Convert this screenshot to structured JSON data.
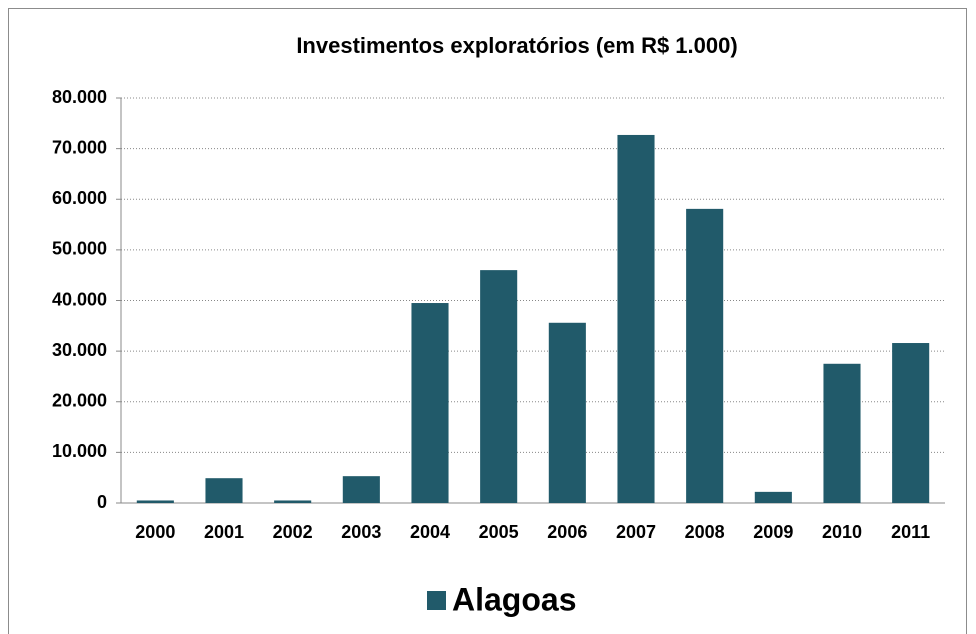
{
  "chart_data": {
    "type": "bar",
    "title": "Investimentos exploratórios (em R$ 1.000)",
    "categories": [
      "2000",
      "2001",
      "2002",
      "2003",
      "2004",
      "2005",
      "2006",
      "2007",
      "2008",
      "2009",
      "2010",
      "2011"
    ],
    "series": [
      {
        "name": "Alagoas",
        "color": "#215a6a",
        "values": [
          500,
          4900,
          500,
          5300,
          39500,
          46000,
          35600,
          72700,
          58100,
          2200,
          27500,
          31600
        ]
      }
    ],
    "ylim": [
      0,
      80000
    ],
    "yticks": [
      0,
      {
        "value": 10000,
        "label": "10.000"
      },
      {
        "value": 20000,
        "label": "20.000"
      },
      {
        "value": 30000,
        "label": "30.000"
      },
      {
        "value": 40000,
        "label": "40.000"
      },
      {
        "value": 50000,
        "label": "50.000"
      },
      {
        "value": 60000,
        "label": "60.000"
      },
      {
        "value": 70000,
        "label": "70.000"
      },
      {
        "value": 80000,
        "label": "80.000"
      }
    ],
    "grid": true,
    "legend": "bottom"
  }
}
